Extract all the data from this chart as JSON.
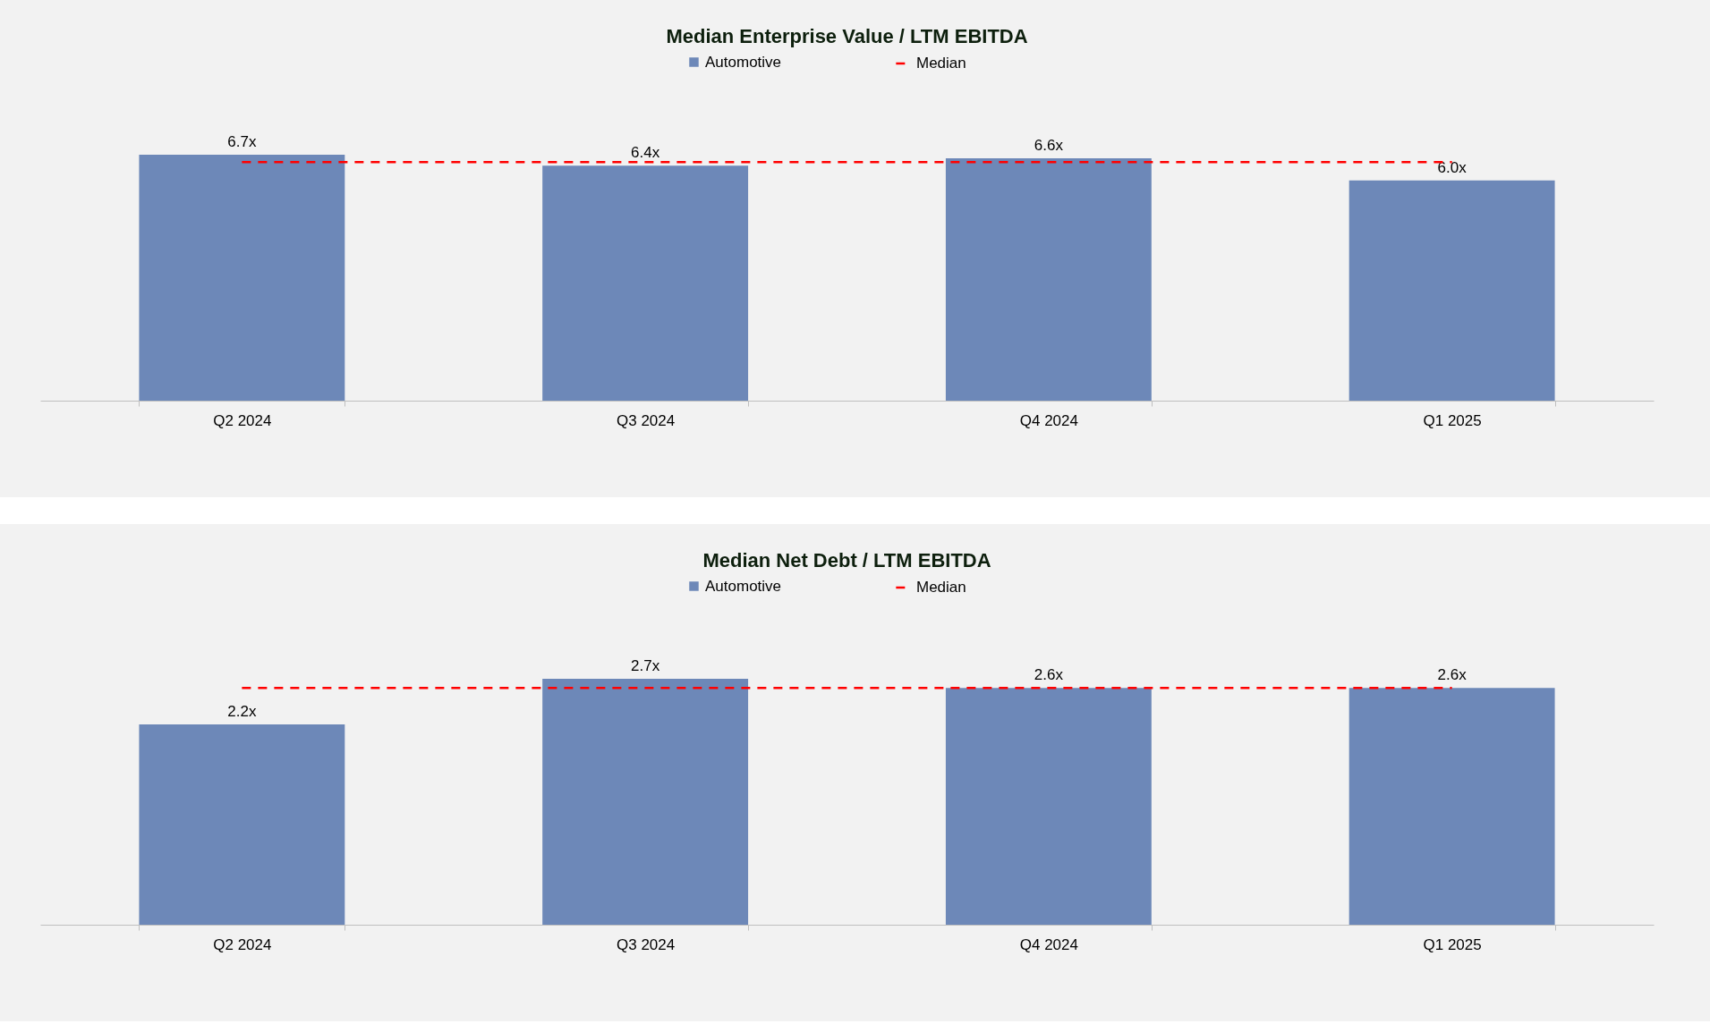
{
  "chart_data": [
    {
      "type": "bar",
      "title": "Median Enterprise Value / LTM EBITDA",
      "categories": [
        "Q2 2024",
        "Q3 2024",
        "Q4 2024",
        "Q1 2025"
      ],
      "series": [
        {
          "name": "Automotive",
          "color": "#6d88b8",
          "values": [
            6.7,
            6.4,
            6.6,
            6.0
          ],
          "value_labels": [
            "6.7x",
            "6.4x",
            "6.6x",
            "6.0x"
          ]
        }
      ],
      "ref_lines": [
        {
          "axis": "y",
          "value": 6.5,
          "label": "Median",
          "color": "#ff0000",
          "line_style": "dashed"
        }
      ],
      "tick_labels": "x",
      "legend": "top"
    },
    {
      "type": "bar",
      "title": "Median Net Debt / LTM EBITDA",
      "categories": [
        "Q2 2024",
        "Q3 2024",
        "Q4 2024",
        "Q1 2025"
      ],
      "series": [
        {
          "name": "Automotive",
          "color": "#6d88b8",
          "values": [
            2.2,
            2.7,
            2.6,
            2.6
          ],
          "value_labels": [
            "2.2x",
            "2.7x",
            "2.6x",
            "2.6x"
          ]
        }
      ],
      "ref_lines": [
        {
          "axis": "y",
          "value": 2.6,
          "label": "Median",
          "color": "#ff0000",
          "line_style": "dashed"
        }
      ],
      "tick_labels": "x",
      "legend": "top"
    }
  ]
}
